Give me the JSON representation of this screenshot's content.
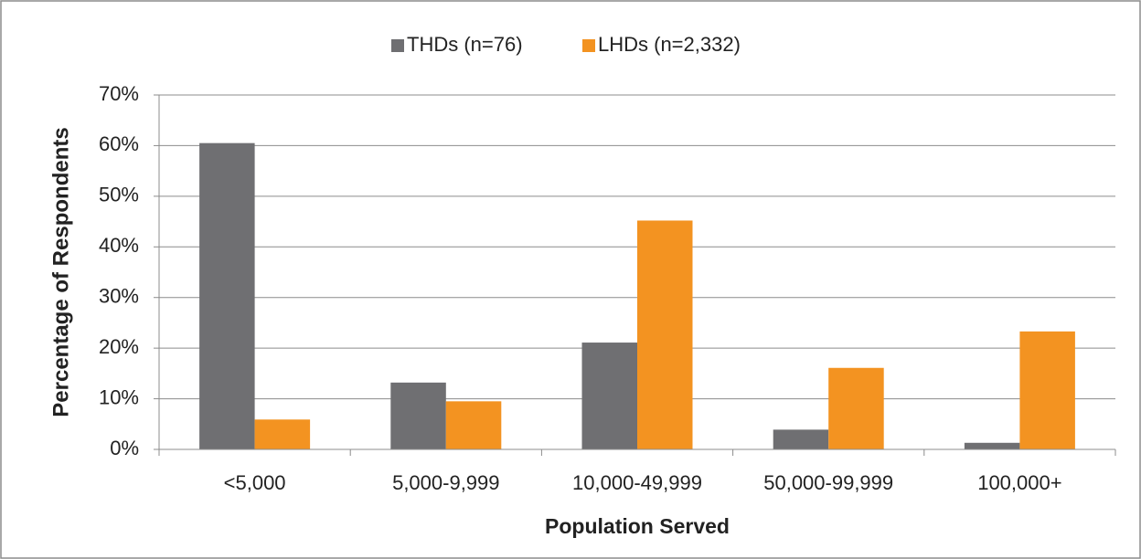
{
  "chart_data": {
    "type": "bar",
    "x_label": "Population Served",
    "y_label": "Percentage of Respondents",
    "categories": [
      "<5,000",
      "5,000-9,999",
      "10,000-49,999",
      "50,000-99,999",
      "100,000+"
    ],
    "series": [
      {
        "name": "THDs (n=76)",
        "color": "#6f6f72",
        "values": [
          60.5,
          13.2,
          21.1,
          3.9,
          1.3
        ]
      },
      {
        "name": "LHDs (n=2,332)",
        "color": "#f39321",
        "values": [
          5.9,
          9.5,
          45.2,
          16.1,
          23.3
        ]
      }
    ],
    "ylim": [
      0,
      70
    ],
    "yticks": [
      {
        "value": 0,
        "label": "0%"
      },
      {
        "value": 10,
        "label": "10%"
      },
      {
        "value": 20,
        "label": "20%"
      },
      {
        "value": 30,
        "label": "30%"
      },
      {
        "value": 40,
        "label": "40%"
      },
      {
        "value": 50,
        "label": "50%"
      },
      {
        "value": 60,
        "label": "60%"
      },
      {
        "value": 70,
        "label": "70%"
      }
    ],
    "grid": true,
    "legend": "top"
  }
}
